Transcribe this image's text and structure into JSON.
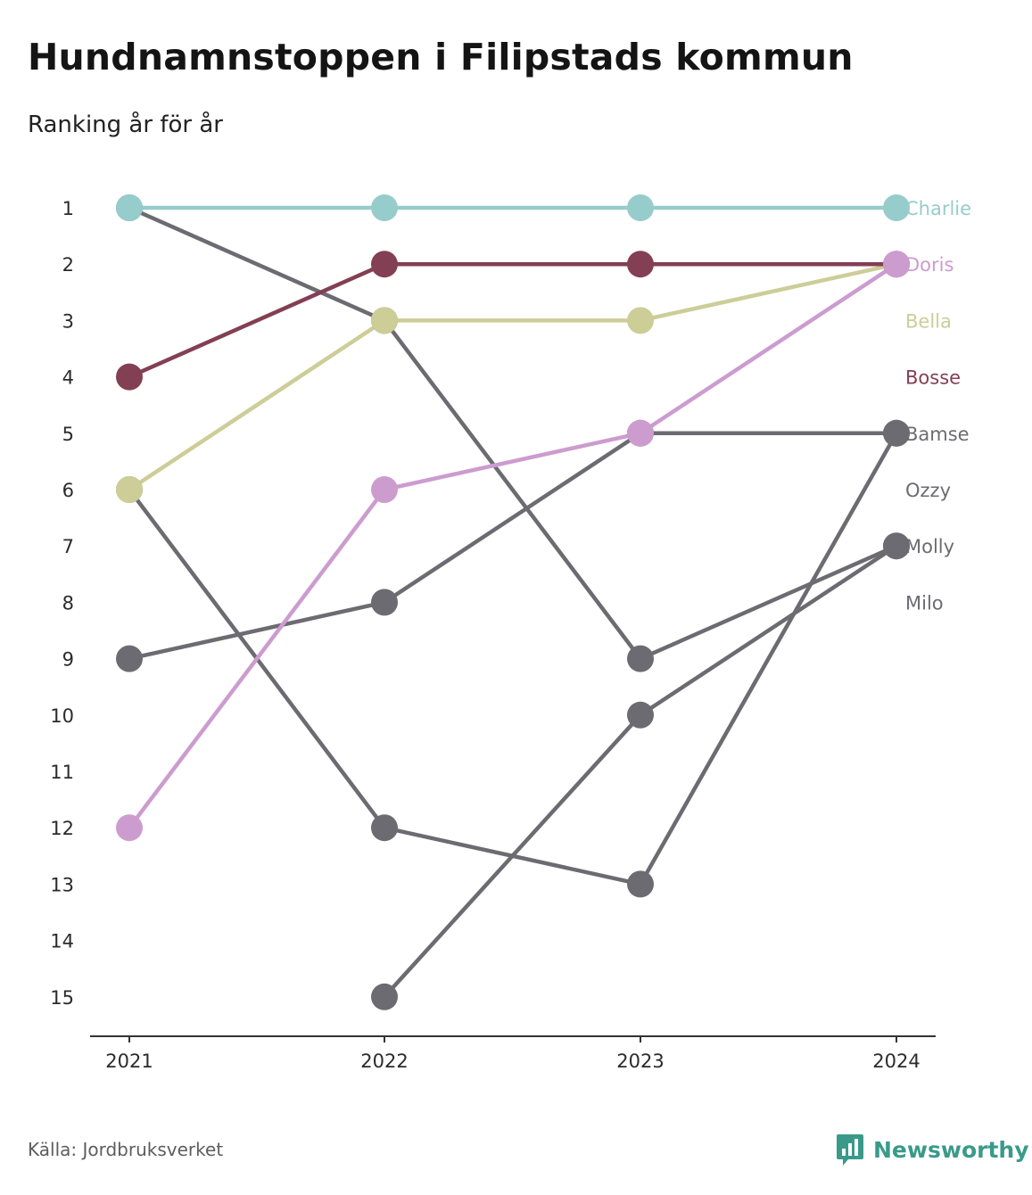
{
  "header": {
    "title": "Hundnamnstoppen i Filipstads kommun",
    "subtitle": "Ranking år för år"
  },
  "footer": {
    "source": "Källa: Jordbruksverket",
    "brand": "Newsworthy",
    "brand_icon": "bar-chart-speech-bubble-icon",
    "brand_color": "#3a9a8a"
  },
  "chart_data": {
    "type": "line",
    "title": "Hundnamnstoppen i Filipstads kommun",
    "subtitle": "Ranking år för år",
    "x": [
      "2021",
      "2022",
      "2023",
      "2024"
    ],
    "y_ticks": [
      "1",
      "2",
      "3",
      "4",
      "5",
      "6",
      "7",
      "8",
      "9",
      "10",
      "11",
      "12",
      "13",
      "14",
      "15"
    ],
    "ylim": [
      1,
      15
    ],
    "y_reversed": true,
    "grid": false,
    "legend": "direct labels at right end",
    "series": [
      {
        "name": "Charlie",
        "values": [
          1,
          1,
          1,
          1
        ],
        "color": "#96cccb",
        "highlight": true
      },
      {
        "name": "Doris",
        "values": [
          12,
          6,
          5,
          2
        ],
        "color": "#cc9ccf",
        "highlight": true
      },
      {
        "name": "Bella",
        "values": [
          6,
          3,
          3,
          2
        ],
        "color": "#cdcd98",
        "highlight": true
      },
      {
        "name": "Bosse",
        "values": [
          4,
          2,
          2,
          2
        ],
        "color": "#833f54",
        "highlight": true
      },
      {
        "name": "Bamse",
        "values": [
          9,
          8,
          5,
          5
        ],
        "color": "#6c6b72",
        "highlight": false
      },
      {
        "name": "Ozzy",
        "values": [
          1,
          3,
          9,
          7
        ],
        "color": "#6c6b72",
        "highlight": false
      },
      {
        "name": "Molly",
        "values": [
          6,
          12,
          13,
          5
        ],
        "color": "#6c6b72",
        "highlight": false
      },
      {
        "name": "Milo",
        "values": [
          null,
          15,
          10,
          7
        ],
        "color": "#6c6b72",
        "highlight": false
      }
    ]
  }
}
